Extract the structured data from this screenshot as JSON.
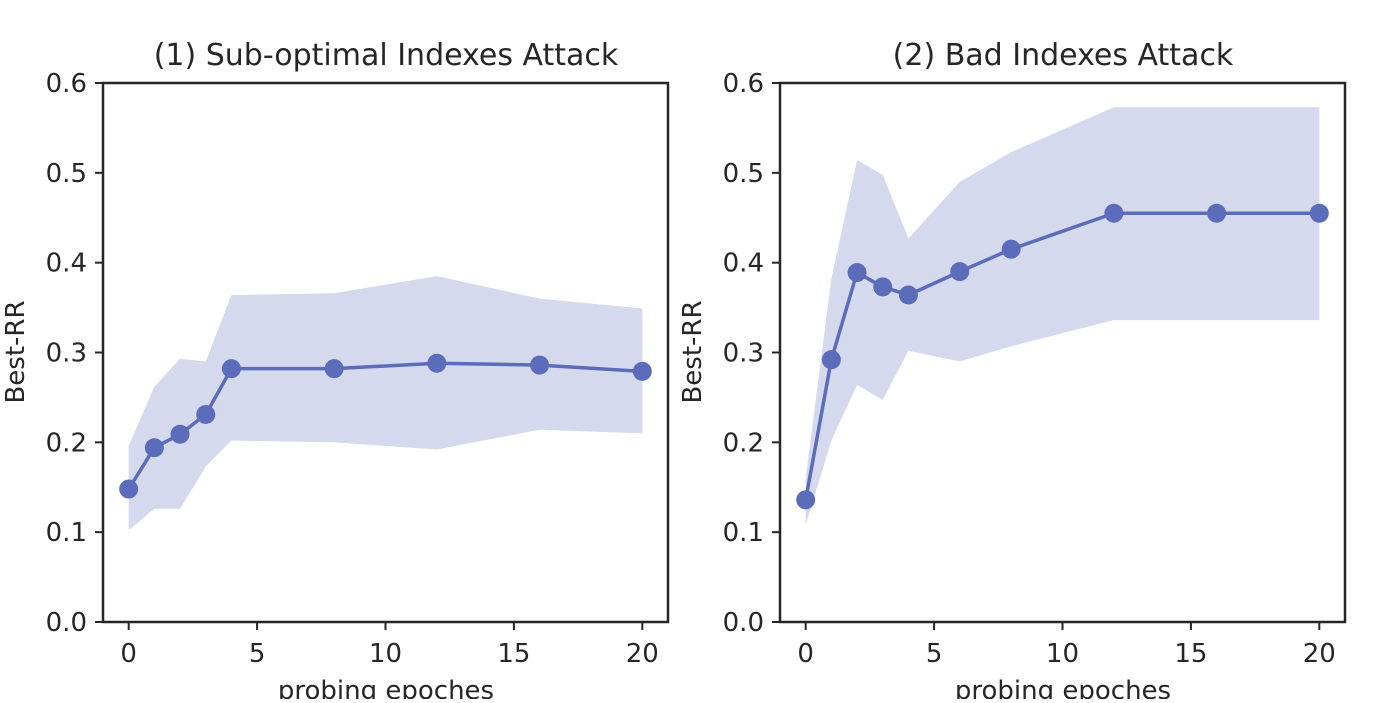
{
  "colors": {
    "line": "#5b6cbb",
    "band": "#d5d9ee",
    "axis": "#262626",
    "background": "#ffffff"
  },
  "chart_data": [
    {
      "type": "line",
      "title": "(1) Sub-optimal Indexes Attack",
      "xlabel": "probing epoches",
      "ylabel": "Best-RR",
      "xlim": [
        -1,
        21
      ],
      "ylim": [
        0.0,
        0.6
      ],
      "xticks": [
        0,
        5,
        10,
        15,
        20
      ],
      "xtick_labels": [
        "0",
        "5",
        "10",
        "15",
        "20"
      ],
      "yticks": [
        0.0,
        0.1,
        0.2,
        0.3,
        0.4,
        0.5,
        0.6
      ],
      "ytick_labels": [
        "0.0",
        "0.1",
        "0.2",
        "0.3",
        "0.4",
        "0.5",
        "0.6"
      ],
      "grid": false,
      "x": [
        0,
        1,
        2,
        3,
        4,
        8,
        12,
        16,
        20
      ],
      "y": [
        0.148,
        0.194,
        0.209,
        0.231,
        0.282,
        0.282,
        0.288,
        0.286,
        0.279
      ],
      "band_lower": [
        0.102,
        0.126,
        0.126,
        0.173,
        0.202,
        0.2,
        0.192,
        0.214,
        0.21
      ],
      "band_upper": [
        0.196,
        0.262,
        0.293,
        0.29,
        0.364,
        0.366,
        0.385,
        0.36,
        0.349
      ]
    },
    {
      "type": "line",
      "title": "(2) Bad Indexes Attack",
      "xlabel": "probing epoches",
      "ylabel": "Best-RR",
      "xlim": [
        -1,
        21
      ],
      "ylim": [
        0.0,
        0.6
      ],
      "xticks": [
        0,
        5,
        10,
        15,
        20
      ],
      "xtick_labels": [
        "0",
        "5",
        "10",
        "15",
        "20"
      ],
      "yticks": [
        0.0,
        0.1,
        0.2,
        0.3,
        0.4,
        0.5,
        0.6
      ],
      "ytick_labels": [
        "0.0",
        "0.1",
        "0.2",
        "0.3",
        "0.4",
        "0.5",
        "0.6"
      ],
      "grid": false,
      "x": [
        0,
        1,
        2,
        3,
        4,
        6,
        8,
        12,
        16,
        20
      ],
      "y": [
        0.136,
        0.292,
        0.389,
        0.373,
        0.364,
        0.39,
        0.415,
        0.455,
        0.455,
        0.455
      ],
      "band_lower": [
        0.108,
        0.202,
        0.264,
        0.247,
        0.302,
        0.29,
        0.307,
        0.336,
        0.336,
        0.336
      ],
      "band_upper": [
        0.16,
        0.382,
        0.514,
        0.498,
        0.427,
        0.49,
        0.523,
        0.573,
        0.573,
        0.573
      ]
    }
  ]
}
